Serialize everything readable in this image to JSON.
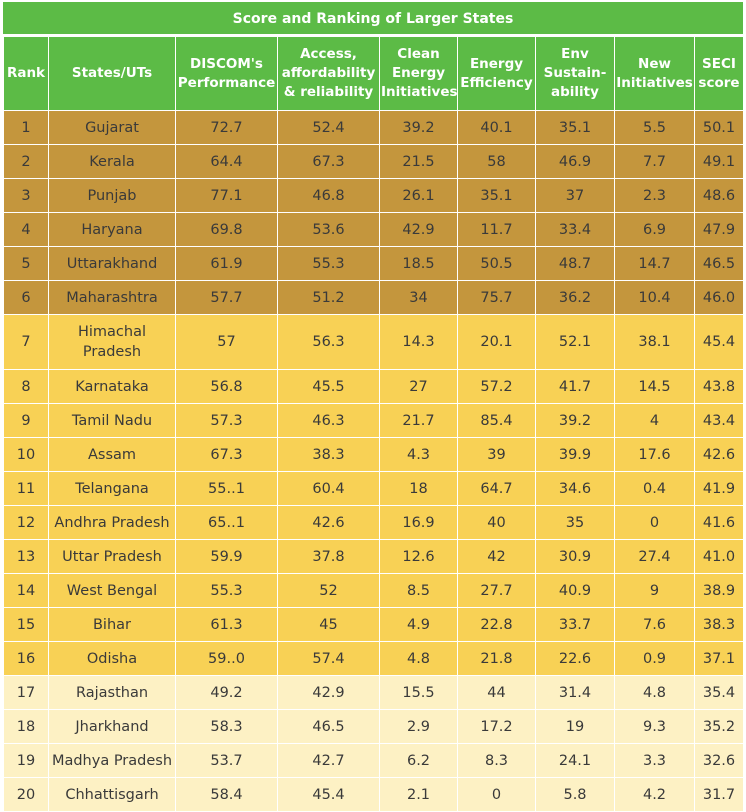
{
  "title": "Score and Ranking of Larger States",
  "headers": {
    "rank": "Rank",
    "state": "States/UTs",
    "discom": [
      "DISCOM's",
      "Performance"
    ],
    "access": [
      "Access,",
      "affordability",
      "& reliability"
    ],
    "clean": [
      "Clean",
      "Energy",
      "Initiatives"
    ],
    "efficiency": [
      "Energy",
      "Efficiency"
    ],
    "env": [
      "Env",
      "Sustain-",
      "ability"
    ],
    "new": [
      "New",
      "Initiatives"
    ],
    "seci": [
      "SECI",
      "score"
    ]
  },
  "colors": {
    "header": "#5cbb46",
    "tier1": "#c4963d",
    "tier2": "#f8d155",
    "tier3": "#fdf1c4"
  },
  "rows": [
    {
      "rank": "1",
      "state": [
        "Gujarat"
      ],
      "discom": "72.7",
      "access": "52.4",
      "clean": "39.2",
      "efficiency": "40.1",
      "env": "35.1",
      "new": "5.5",
      "seci": "50.1",
      "tier": 1
    },
    {
      "rank": "2",
      "state": [
        "Kerala"
      ],
      "discom": "64.4",
      "access": "67.3",
      "clean": "21.5",
      "efficiency": "58",
      "env": "46.9",
      "new": "7.7",
      "seci": "49.1",
      "tier": 1
    },
    {
      "rank": "3",
      "state": [
        "Punjab"
      ],
      "discom": "77.1",
      "access": "46.8",
      "clean": "26.1",
      "efficiency": "35.1",
      "env": "37",
      "new": "2.3",
      "seci": "48.6",
      "tier": 1
    },
    {
      "rank": "4",
      "state": [
        "Haryana"
      ],
      "discom": "69.8",
      "access": "53.6",
      "clean": "42.9",
      "efficiency": "11.7",
      "env": "33.4",
      "new": "6.9",
      "seci": "47.9",
      "tier": 1
    },
    {
      "rank": "5",
      "state": [
        "Uttarakhand"
      ],
      "discom": "61.9",
      "access": "55.3",
      "clean": "18.5",
      "efficiency": "50.5",
      "env": "48.7",
      "new": "14.7",
      "seci": "46.5",
      "tier": 1
    },
    {
      "rank": "6",
      "state": [
        "Maharashtra"
      ],
      "discom": "57.7",
      "access": "51.2",
      "clean": "34",
      "efficiency": "75.7",
      "env": "36.2",
      "new": "10.4",
      "seci": "46.0",
      "tier": 1
    },
    {
      "rank": "7",
      "state": [
        "Himachal",
        "Pradesh"
      ],
      "discom": "57",
      "access": "56.3",
      "clean": "14.3",
      "efficiency": "20.1",
      "env": "52.1",
      "new": "38.1",
      "seci": "45.4",
      "tier": 2
    },
    {
      "rank": "8",
      "state": [
        "Karnataka"
      ],
      "discom": "56.8",
      "access": "45.5",
      "clean": "27",
      "efficiency": "57.2",
      "env": "41.7",
      "new": "14.5",
      "seci": "43.8",
      "tier": 2
    },
    {
      "rank": "9",
      "state": [
        "Tamil Nadu"
      ],
      "discom": "57.3",
      "access": "46.3",
      "clean": "21.7",
      "efficiency": "85.4",
      "env": "39.2",
      "new": "4",
      "seci": "43.4",
      "tier": 2
    },
    {
      "rank": "10",
      "state": [
        "Assam"
      ],
      "discom": "67.3",
      "access": "38.3",
      "clean": "4.3",
      "efficiency": "39",
      "env": "39.9",
      "new": "17.6",
      "seci": "42.6",
      "tier": 2
    },
    {
      "rank": "11",
      "state": [
        "Telangana"
      ],
      "discom": "55..1",
      "access": "60.4",
      "clean": "18",
      "efficiency": "64.7",
      "env": "34.6",
      "new": "0.4",
      "seci": "41.9",
      "tier": 2
    },
    {
      "rank": "12",
      "state": [
        "Andhra Pradesh"
      ],
      "discom": "65..1",
      "access": "42.6",
      "clean": "16.9",
      "efficiency": "40",
      "env": "35",
      "new": "0",
      "seci": "41.6",
      "tier": 2
    },
    {
      "rank": "13",
      "state": [
        "Uttar Pradesh"
      ],
      "discom": "59.9",
      "access": "37.8",
      "clean": "12.6",
      "efficiency": "42",
      "env": "30.9",
      "new": "27.4",
      "seci": "41.0",
      "tier": 2
    },
    {
      "rank": "14",
      "state": [
        "West Bengal"
      ],
      "discom": "55.3",
      "access": "52",
      "clean": "8.5",
      "efficiency": "27.7",
      "env": "40.9",
      "new": "9",
      "seci": "38.9",
      "tier": 2
    },
    {
      "rank": "15",
      "state": [
        "Bihar"
      ],
      "discom": "61.3",
      "access": "45",
      "clean": "4.9",
      "efficiency": "22.8",
      "env": "33.7",
      "new": "7.6",
      "seci": "38.3",
      "tier": 2
    },
    {
      "rank": "16",
      "state": [
        "Odisha"
      ],
      "discom": "59..0",
      "access": "57.4",
      "clean": "4.8",
      "efficiency": "21.8",
      "env": "22.6",
      "new": "0.9",
      "seci": "37.1",
      "tier": 2
    },
    {
      "rank": "17",
      "state": [
        "Rajasthan"
      ],
      "discom": "49.2",
      "access": "42.9",
      "clean": "15.5",
      "efficiency": "44",
      "env": "31.4",
      "new": "4.8",
      "seci": "35.4",
      "tier": 3
    },
    {
      "rank": "18",
      "state": [
        "Jharkhand"
      ],
      "discom": "58.3",
      "access": "46.5",
      "clean": "2.9",
      "efficiency": "17.2",
      "env": "19",
      "new": "9.3",
      "seci": "35.2",
      "tier": 3
    },
    {
      "rank": "19",
      "state": [
        "Madhya Pradesh"
      ],
      "discom": "53.7",
      "access": "42.7",
      "clean": "6.2",
      "efficiency": "8.3",
      "env": "24.1",
      "new": "3.3",
      "seci": "32.6",
      "tier": 3
    },
    {
      "rank": "20",
      "state": [
        "Chhattisgarh"
      ],
      "discom": "58.4",
      "access": "45.4",
      "clean": "2.1",
      "efficiency": "0",
      "env": "5.8",
      "new": "4.2",
      "seci": "31.7",
      "tier": 3
    }
  ]
}
